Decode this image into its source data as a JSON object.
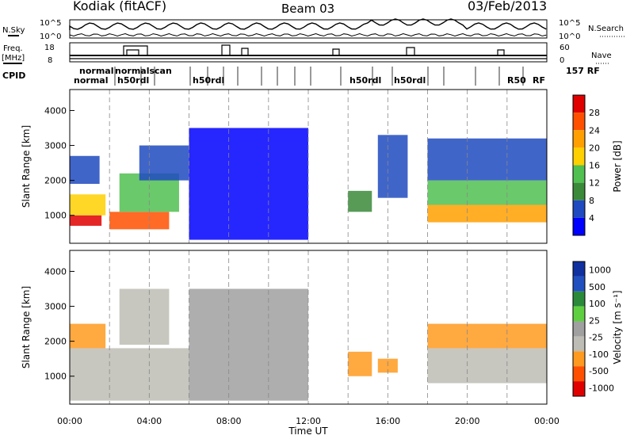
{
  "header": {
    "station": "Kodiak (fitACF)",
    "beam": "Beam 03",
    "date": "03/Feb/2013"
  },
  "left_labels": {
    "nsky": "N.Sky",
    "freq": "Freq.",
    "freq_unit": "[MHz]",
    "cpid": "CPID"
  },
  "right_labels": {
    "nsearch": "N.Search",
    "nave": "Nave"
  },
  "noise_ticks": {
    "left": [
      "10^5",
      "10^0"
    ],
    "right": [
      "10^5",
      "10^0"
    ]
  },
  "freq_ticks": [
    "18",
    "8"
  ],
  "nave_ticks": [
    "60",
    "0"
  ],
  "cpid": {
    "row1": [
      "normal",
      "normalscan",
      "RF"
    ],
    "row2": [
      "normal",
      "h50rdl",
      "R50",
      "RF"
    ],
    "right_text": "157 RF"
  },
  "colors": {
    "power": [
      "#0000ff",
      "#1f4ac0",
      "#3a8a3a",
      "#50c050",
      "#ffd000",
      "#ffa000",
      "#ff5000",
      "#e00000"
    ],
    "velocity": [
      "#e00000",
      "#ff5000",
      "#ff9a20",
      "#bdbdb5",
      "#a0a0a0",
      "#5ed040",
      "#2a8a3a",
      "#2050c0",
      "#1030a0"
    ]
  },
  "chart_data": [
    {
      "type": "heatmap",
      "name": "power",
      "xlabel": "",
      "ylabel": "Slant Range [km]",
      "xlim": [
        0,
        24
      ],
      "ylim": [
        200,
        4600
      ],
      "yticks": [
        1000,
        2000,
        3000,
        4000
      ],
      "colorbar": {
        "label": "Power [dB]",
        "range": [
          0,
          32
        ],
        "ticks": [
          "4",
          "8",
          "12",
          "16",
          "20",
          "24",
          "28"
        ]
      },
      "echo_regions": [
        {
          "t": [
            0.0,
            1.6
          ],
          "r": [
            700,
            1000
          ],
          "level": "28",
          "color_index": 7
        },
        {
          "t": [
            0.0,
            1.8
          ],
          "r": [
            1000,
            1600
          ],
          "level": "16",
          "color_index": 4
        },
        {
          "t": [
            0.0,
            1.5
          ],
          "r": [
            1900,
            2700
          ],
          "level": "8",
          "color_index": 1
        },
        {
          "t": [
            2.0,
            5.0
          ],
          "r": [
            600,
            1100
          ],
          "level": "24",
          "color_index": 6
        },
        {
          "t": [
            2.5,
            5.5
          ],
          "r": [
            1100,
            2200
          ],
          "level": "12",
          "color_index": 3
        },
        {
          "t": [
            3.5,
            6.0
          ],
          "r": [
            2000,
            3000
          ],
          "level": "8",
          "color_index": 1
        },
        {
          "t": [
            6.0,
            12.0
          ],
          "r": [
            300,
            3500
          ],
          "level": "4",
          "color_index": 0
        },
        {
          "t": [
            14.0,
            15.2
          ],
          "r": [
            1100,
            1700
          ],
          "level": "12",
          "color_index": 2
        },
        {
          "t": [
            15.5,
            17.0
          ],
          "r": [
            1500,
            3300
          ],
          "level": "8",
          "color_index": 1
        },
        {
          "t": [
            18.0,
            24.0
          ],
          "r": [
            800,
            1300
          ],
          "level": "20",
          "color_index": 5
        },
        {
          "t": [
            18.0,
            24.0
          ],
          "r": [
            1300,
            2000
          ],
          "level": "12",
          "color_index": 3
        },
        {
          "t": [
            18.0,
            24.0
          ],
          "r": [
            2000,
            3200
          ],
          "level": "8",
          "color_index": 1
        }
      ]
    },
    {
      "type": "heatmap",
      "name": "velocity",
      "xlabel": "Time UT",
      "ylabel": "Slant Range [km]",
      "xlim": [
        0,
        24
      ],
      "ylim": [
        200,
        4600
      ],
      "yticks": [
        1000,
        2000,
        3000,
        4000
      ],
      "xticks": [
        "00:00",
        "04:00",
        "08:00",
        "12:00",
        "16:00",
        "20:00",
        "00:00"
      ],
      "colorbar": {
        "label": "Velocity [m s⁻¹]",
        "ticks": [
          "1000",
          "500",
          "100",
          "25",
          "-25",
          "-100",
          "-500",
          "-1000"
        ]
      },
      "echo_regions": [
        {
          "t": [
            0.0,
            6.0
          ],
          "r": [
            300,
            1800
          ],
          "level": "-25",
          "color_index": 3
        },
        {
          "t": [
            0.0,
            1.8
          ],
          "r": [
            1800,
            2500
          ],
          "level": "-100",
          "color_index": 2
        },
        {
          "t": [
            2.5,
            5.0
          ],
          "r": [
            1900,
            3500
          ],
          "level": "-25",
          "color_index": 3
        },
        {
          "t": [
            6.0,
            12.0
          ],
          "r": [
            300,
            3500
          ],
          "level": "-25",
          "color_index": 4
        },
        {
          "t": [
            14.0,
            15.2
          ],
          "r": [
            1000,
            1700
          ],
          "level": "-100",
          "color_index": 2
        },
        {
          "t": [
            15.5,
            16.5
          ],
          "r": [
            1100,
            1500
          ],
          "level": "-100",
          "color_index": 2
        },
        {
          "t": [
            18.0,
            24.0
          ],
          "r": [
            800,
            1800
          ],
          "level": "-25",
          "color_index": 3
        },
        {
          "t": [
            18.0,
            24.0
          ],
          "r": [
            1800,
            2500
          ],
          "level": "-100",
          "color_index": 2
        }
      ]
    }
  ]
}
